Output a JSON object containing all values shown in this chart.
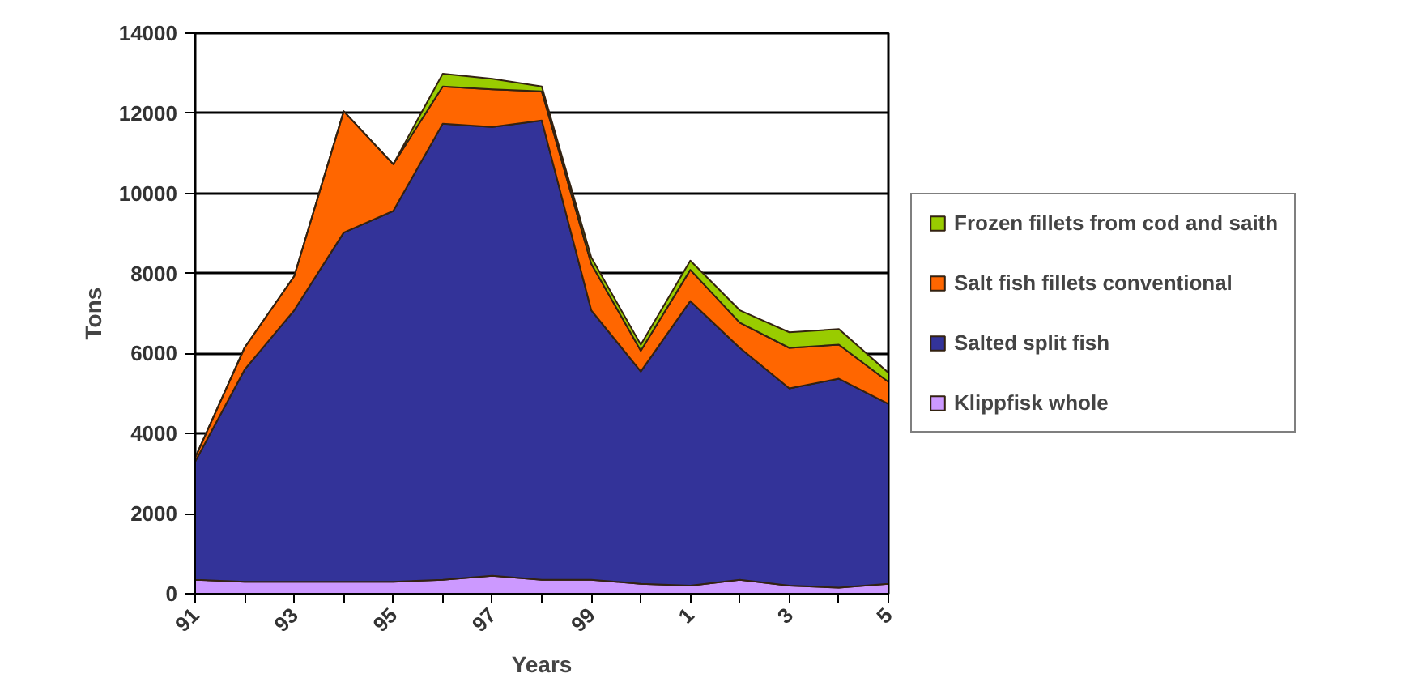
{
  "chart_data": {
    "type": "area",
    "stacked": true,
    "xlabel": "Years",
    "ylabel": "Tons",
    "categories": [
      "91",
      null,
      "93",
      null,
      "95",
      null,
      "97",
      null,
      "99",
      null,
      "1",
      null,
      "3",
      null,
      "5"
    ],
    "ylim": [
      0,
      14000
    ],
    "yticks": [
      0,
      2000,
      4000,
      6000,
      8000,
      10000,
      12000,
      14000
    ],
    "grid": "y",
    "legend": "right",
    "series": [
      {
        "name": "Klippfisk whole",
        "color": "#cc99ff",
        "values": [
          350,
          300,
          300,
          300,
          300,
          350,
          450,
          350,
          350,
          250,
          200,
          350,
          200,
          150,
          250
        ]
      },
      {
        "name": "Salted split fish",
        "color": "#333399",
        "values": [
          2950,
          5300,
          6780,
          8720,
          9260,
          11390,
          11210,
          11470,
          6730,
          5300,
          7110,
          5790,
          4930,
          5220,
          4490
        ]
      },
      {
        "name": "Salt fish fillets conventional",
        "color": "#ff6600",
        "values": [
          100,
          550,
          850,
          3030,
          1170,
          930,
          940,
          730,
          1160,
          520,
          780,
          630,
          1010,
          850,
          550
        ]
      },
      {
        "name": "Frozen fillets from cod and saith",
        "color": "#99cc00",
        "values": [
          0,
          0,
          0,
          0,
          0,
          320,
          260,
          120,
          160,
          150,
          230,
          310,
          390,
          390,
          230
        ]
      }
    ]
  }
}
